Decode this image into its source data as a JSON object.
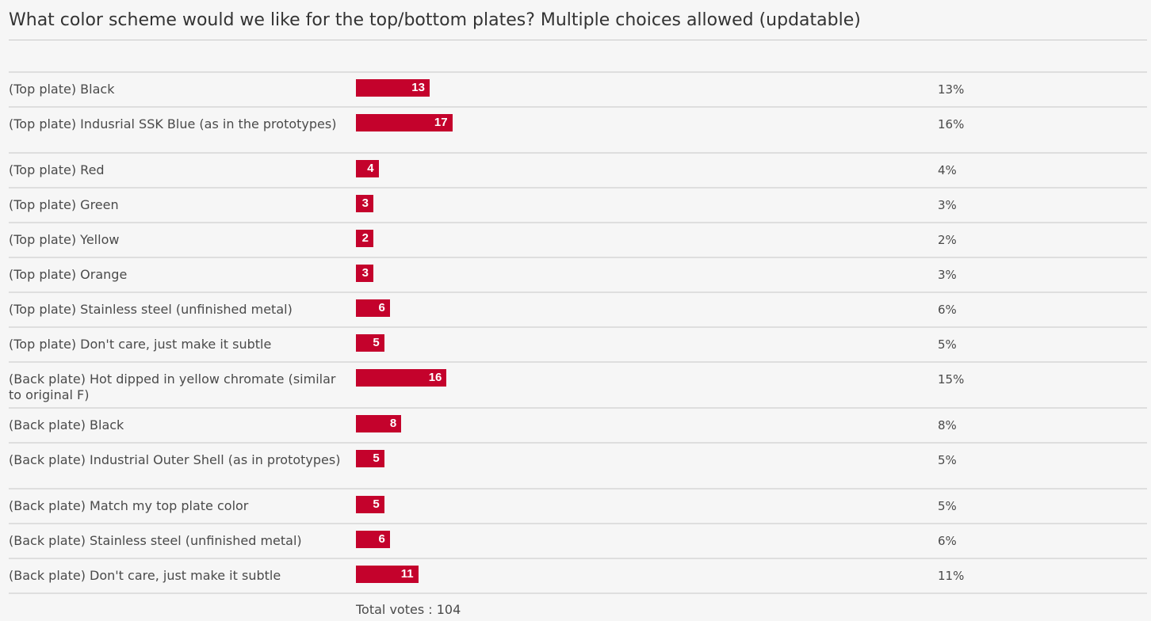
{
  "poll": {
    "title": "What color scheme would we like for the top/bottom plates? Multiple choices allowed (updatable)",
    "total_votes_text": "Total votes : 104"
  },
  "colors": {
    "bar": "#c4022c",
    "background": "#f6f6f6"
  },
  "chart_data": {
    "type": "bar",
    "orientation": "horizontal",
    "title": "What color scheme would we like for the top/bottom plates? Multiple choices allowed (updatable)",
    "categories": [
      "(Top plate) Black",
      "(Top plate) Indusrial SSK Blue (as in the prototypes)",
      "(Top plate) Red",
      "(Top plate) Green",
      "(Top plate) Yellow",
      "(Top plate) Orange",
      "(Top plate) Stainless steel (unfinished metal)",
      "(Top plate) Don't care, just make it subtle",
      "(Back plate) Hot dipped in yellow chromate (similar to original F)",
      "(Back plate) Black",
      "(Back plate) Industrial Outer Shell (as in prototypes)",
      "(Back plate) Match my top plate color",
      "(Back plate) Stainless steel (unfinished metal)",
      "(Back plate) Don't care, just make it subtle"
    ],
    "values": [
      13,
      17,
      4,
      3,
      2,
      3,
      6,
      5,
      16,
      8,
      5,
      5,
      6,
      11
    ],
    "percentages": [
      "13%",
      "16%",
      "4%",
      "3%",
      "2%",
      "3%",
      "6%",
      "5%",
      "15%",
      "8%",
      "5%",
      "5%",
      "6%",
      "11%"
    ],
    "total_votes": 104
  }
}
